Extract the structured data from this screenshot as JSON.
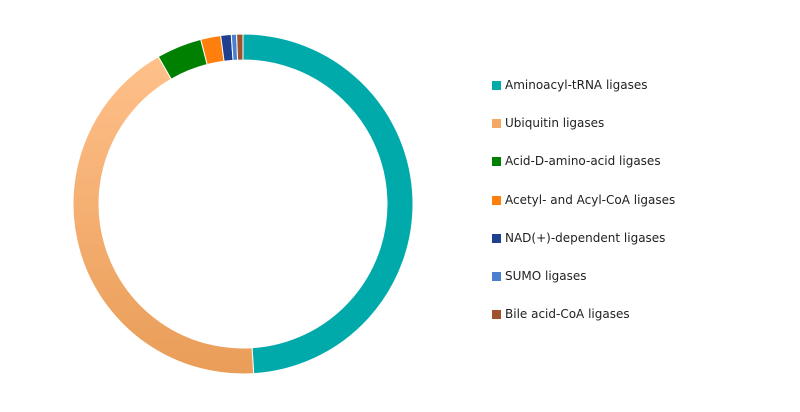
{
  "chart_data": {
    "type": "pie",
    "title": "",
    "legend_position": "right",
    "series": [
      {
        "values": [
          49.0,
          42.7,
          4.3,
          1.9,
          1.0,
          0.5,
          0.6
        ],
        "categories": [
          "Aminoacyl-tRNA ligases",
          "Ubiquitin ligases",
          "Acid-D-amino-acid ligases",
          "Acetyl- and Acyl-CoA ligases",
          "NAD(+)-dependent ligases",
          "SUMO ligases",
          "Bile acid-CoA ligases"
        ],
        "colors": [
          "#00aaaa",
          "#f4a866",
          "#008000",
          "#ff7f0e",
          "#1f3f8f",
          "#4a7fd0",
          "#a0522d"
        ]
      }
    ]
  }
}
